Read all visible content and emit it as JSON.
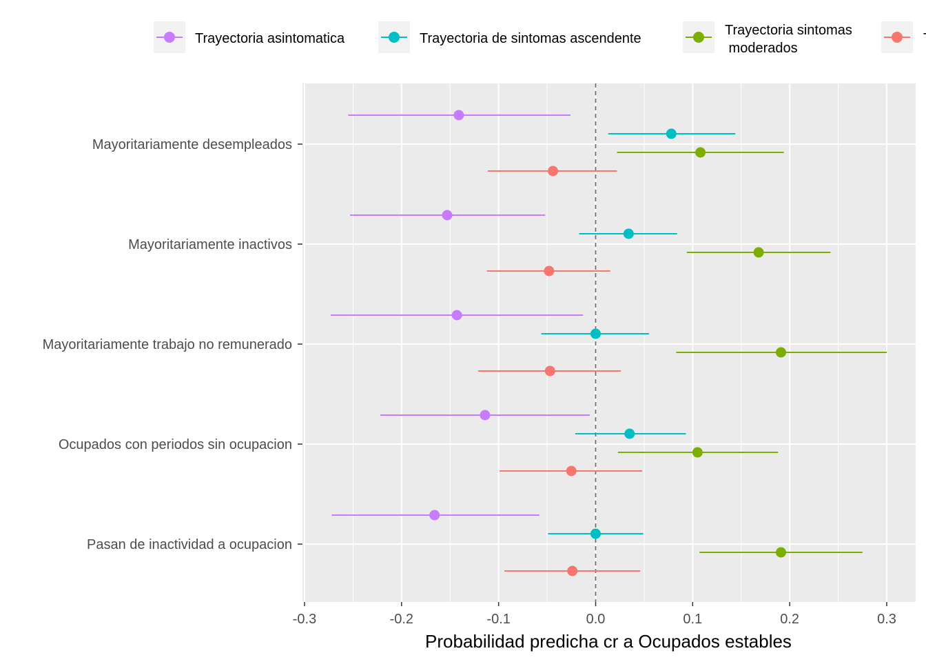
{
  "chart_data": {
    "type": "scatter",
    "subtype": "forest-plot-errorbars",
    "title": "",
    "xlabel": "Probabilidad predicha cr a Ocupados estables",
    "ylabel": "",
    "xlim": [
      -0.3,
      0.3
    ],
    "xticks": [
      -0.3,
      -0.2,
      -0.1,
      0.0,
      0.1,
      0.2,
      0.3
    ],
    "xtick_labels": [
      "-0.3",
      "-0.2",
      "-0.1",
      "0.0",
      "0.1",
      "0.2",
      "0.3"
    ],
    "reference_line": 0,
    "grid": true,
    "legend_position": "top",
    "categories": [
      "Mayoritariamente desempleados",
      "Mayoritariamente inactivos",
      "Mayoritariamente trabajo no remunerado",
      "Ocupados con periodos sin ocupacion",
      "Pasan de inactividad a ocupacion"
    ],
    "series": [
      {
        "name": "Trayectoria asintomatica",
        "color": "#C77CFF",
        "estimate": [
          -0.141,
          -0.153,
          -0.143,
          -0.114,
          -0.166
        ],
        "lower": [
          -0.255,
          -0.253,
          -0.273,
          -0.222,
          -0.272
        ],
        "upper": [
          -0.026,
          -0.052,
          -0.013,
          -0.006,
          -0.058
        ]
      },
      {
        "name": "Trayectoria de sintomas ascendente",
        "color": "#00BFC4",
        "estimate": [
          0.078,
          0.034,
          0.0,
          0.035,
          0.0
        ],
        "lower": [
          0.013,
          -0.017,
          -0.056,
          -0.021,
          -0.049
        ],
        "upper": [
          0.144,
          0.084,
          0.055,
          0.093,
          0.049
        ]
      },
      {
        "name": "Trayectoria sintomas moderados",
        "color": "#7CAE00",
        "estimate": [
          0.108,
          0.168,
          0.191,
          0.105,
          0.191
        ],
        "lower": [
          0.022,
          0.094,
          0.083,
          0.023,
          0.107
        ],
        "upper": [
          0.194,
          0.242,
          0.3,
          0.188,
          0.275
        ]
      },
      {
        "name": "T",
        "color": "#F8766D",
        "estimate": [
          -0.044,
          -0.048,
          -0.047,
          -0.025,
          -0.024
        ],
        "lower": [
          -0.111,
          -0.112,
          -0.121,
          -0.099,
          -0.094
        ],
        "upper": [
          0.022,
          0.015,
          0.026,
          0.048,
          0.046
        ]
      }
    ],
    "legend": [
      {
        "label_lines": [
          "Trayectoria asintomatica"
        ],
        "color": "#C77CFF"
      },
      {
        "label_lines": [
          "Trayectoria de sintomas ascendente"
        ],
        "color": "#00BFC4"
      },
      {
        "label_lines": [
          "Trayectoria sintomas",
          " moderados"
        ],
        "color": "#7CAE00"
      },
      {
        "label_lines": [
          "T"
        ],
        "color": "#F8766D"
      }
    ]
  }
}
